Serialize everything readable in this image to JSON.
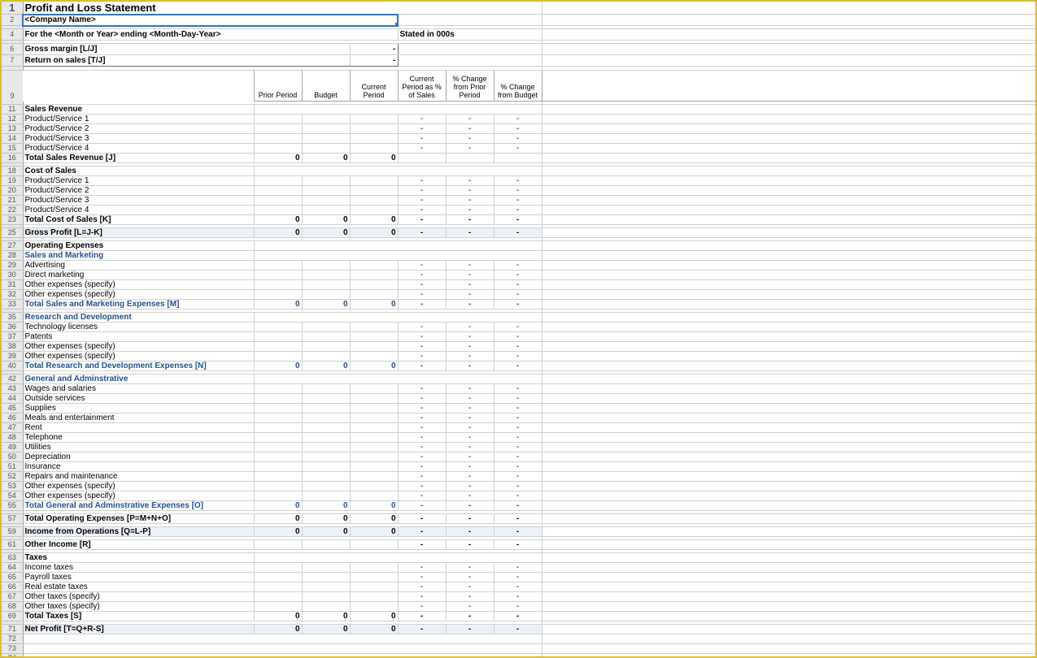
{
  "title": "Profit and Loss Statement",
  "company": "<Company Name>",
  "period_line": "For the <Month or Year> ending <Month-Day-Year>",
  "stated_in": "Stated in 000s",
  "metric_gm": "Gross margin  [L/J]",
  "metric_ros": "Return on sales  [T/J]",
  "dash": "-",
  "zero": "0",
  "col_headers": [
    "Prior Period",
    "Budget",
    "Current Period",
    "Current Period as % of Sales",
    "% Change from Prior Period",
    "% Change from Budget"
  ],
  "rows": [
    {
      "n": 11,
      "type": "label_bold",
      "a": "Sales Revenue"
    },
    {
      "n": 12,
      "type": "data",
      "a": "Product/Service 1",
      "v": [
        "",
        "",
        "",
        "- ",
        "- ",
        "- "
      ]
    },
    {
      "n": 13,
      "type": "data",
      "a": "Product/Service 2",
      "v": [
        "",
        "",
        "",
        "- ",
        "- ",
        "- "
      ]
    },
    {
      "n": 14,
      "type": "data",
      "a": "Product/Service 3",
      "v": [
        "",
        "",
        "",
        "- ",
        "- ",
        "- "
      ]
    },
    {
      "n": 15,
      "type": "data",
      "a": "Product/Service 4",
      "v": [
        "",
        "",
        "",
        "- ",
        "- ",
        "- "
      ]
    },
    {
      "n": 16,
      "type": "total",
      "a": "Total Sales Revenue  [J]",
      "v": [
        "0",
        "0",
        "0",
        "",
        "",
        ""
      ]
    },
    {
      "n": 18,
      "type": "label_bold",
      "a": "Cost of Sales"
    },
    {
      "n": 19,
      "type": "data",
      "a": "Product/Service 1",
      "v": [
        "",
        "",
        "",
        "- ",
        "- ",
        "- "
      ]
    },
    {
      "n": 20,
      "type": "data",
      "a": "Product/Service 2",
      "v": [
        "",
        "",
        "",
        "- ",
        "- ",
        "- "
      ]
    },
    {
      "n": 21,
      "type": "data",
      "a": "Product/Service 3",
      "v": [
        "",
        "",
        "",
        "- ",
        "- ",
        "- "
      ]
    },
    {
      "n": 22,
      "type": "data",
      "a": "Product/Service 4",
      "v": [
        "",
        "",
        "",
        "- ",
        "- ",
        "- "
      ]
    },
    {
      "n": 23,
      "type": "total",
      "a": "Total Cost of Sales  [K]",
      "v": [
        "0",
        "0",
        "0",
        "- ",
        "- ",
        "- "
      ]
    },
    {
      "n": 25,
      "type": "total_fill",
      "a": "Gross Profit  [L=J-K]",
      "v": [
        "0",
        "0",
        "0",
        "- ",
        "- ",
        "- "
      ]
    },
    {
      "n": 27,
      "type": "label_bold",
      "a": "Operating Expenses"
    },
    {
      "n": 28,
      "type": "label_blue",
      "a": "Sales and Marketing"
    },
    {
      "n": 29,
      "type": "data",
      "a": "Advertising",
      "v": [
        "",
        "",
        "",
        "- ",
        "- ",
        "- "
      ]
    },
    {
      "n": 30,
      "type": "data",
      "a": "Direct marketing",
      "v": [
        "",
        "",
        "",
        "- ",
        "- ",
        "- "
      ]
    },
    {
      "n": 31,
      "type": "data",
      "a": "Other expenses (specify)",
      "v": [
        "",
        "",
        "",
        "- ",
        "- ",
        "- "
      ]
    },
    {
      "n": 32,
      "type": "data",
      "a": "Other expenses (specify)",
      "v": [
        "",
        "",
        "",
        "- ",
        "- ",
        "- "
      ]
    },
    {
      "n": 33,
      "type": "total_blue",
      "a": "Total Sales and Marketing Expenses  [M]",
      "v": [
        "0",
        "0",
        "0",
        "- ",
        "- ",
        "- "
      ]
    },
    {
      "n": 35,
      "type": "label_blue",
      "a": "Research and Development"
    },
    {
      "n": 36,
      "type": "data",
      "a": "Technology licenses",
      "v": [
        "",
        "",
        "",
        "- ",
        "- ",
        "- "
      ]
    },
    {
      "n": 37,
      "type": "data",
      "a": "Patents",
      "v": [
        "",
        "",
        "",
        "- ",
        "- ",
        "- "
      ]
    },
    {
      "n": 38,
      "type": "data",
      "a": "Other expenses (specify)",
      "v": [
        "",
        "",
        "",
        "- ",
        "- ",
        "- "
      ]
    },
    {
      "n": 39,
      "type": "data",
      "a": "Other expenses (specify)",
      "v": [
        "",
        "",
        "",
        "- ",
        "- ",
        "- "
      ]
    },
    {
      "n": 40,
      "type": "total_blue",
      "a": "Total Research and Development Expenses  [N]",
      "v": [
        "0",
        "0",
        "0",
        "- ",
        "- ",
        "- "
      ]
    },
    {
      "n": 42,
      "type": "label_blue",
      "a": "General and Adminstrative"
    },
    {
      "n": 43,
      "type": "data",
      "a": "Wages and salaries",
      "v": [
        "",
        "",
        "",
        "- ",
        "- ",
        "- "
      ]
    },
    {
      "n": 44,
      "type": "data",
      "a": "Outside services",
      "v": [
        "",
        "",
        "",
        "- ",
        "- ",
        "- "
      ]
    },
    {
      "n": 45,
      "type": "data",
      "a": "Supplies",
      "v": [
        "",
        "",
        "",
        "- ",
        "- ",
        "- "
      ]
    },
    {
      "n": 46,
      "type": "data",
      "a": "Meals and entertainment",
      "v": [
        "",
        "",
        "",
        "- ",
        "- ",
        "- "
      ]
    },
    {
      "n": 47,
      "type": "data",
      "a": "Rent",
      "v": [
        "",
        "",
        "",
        "- ",
        "- ",
        "- "
      ]
    },
    {
      "n": 48,
      "type": "data",
      "a": "Telephone",
      "v": [
        "",
        "",
        "",
        "- ",
        "- ",
        "- "
      ]
    },
    {
      "n": 49,
      "type": "data",
      "a": "Utilities",
      "v": [
        "",
        "",
        "",
        "- ",
        "- ",
        "- "
      ]
    },
    {
      "n": 50,
      "type": "data",
      "a": "Depreciation",
      "v": [
        "",
        "",
        "",
        "- ",
        "- ",
        "- "
      ]
    },
    {
      "n": 51,
      "type": "data",
      "a": "Insurance",
      "v": [
        "",
        "",
        "",
        "- ",
        "- ",
        "- "
      ]
    },
    {
      "n": 52,
      "type": "data",
      "a": "Repairs and maintenance",
      "v": [
        "",
        "",
        "",
        "- ",
        "- ",
        "- "
      ]
    },
    {
      "n": 53,
      "type": "data",
      "a": "Other expenses (specify)",
      "v": [
        "",
        "",
        "",
        "- ",
        "- ",
        "- "
      ]
    },
    {
      "n": 54,
      "type": "data",
      "a": "Other expenses (specify)",
      "v": [
        "",
        "",
        "",
        "- ",
        "- ",
        "- "
      ]
    },
    {
      "n": 55,
      "type": "total_blue",
      "a": "Total General and Adminstrative Expenses  [O]",
      "v": [
        "0",
        "0",
        "0",
        "- ",
        "- ",
        "- "
      ]
    },
    {
      "n": 57,
      "type": "total",
      "a": "Total Operating Expenses  [P=M+N+O]",
      "v": [
        "0",
        "0",
        "0",
        "- ",
        "- ",
        "- "
      ]
    },
    {
      "n": 59,
      "type": "total_fill",
      "a": "Income from Operations  [Q=L-P]",
      "v": [
        "0",
        "0",
        "0",
        "- ",
        "- ",
        "- "
      ]
    },
    {
      "n": 61,
      "type": "total",
      "a": "Other Income  [R]",
      "v": [
        "",
        "",
        "",
        "- ",
        "- ",
        "- "
      ]
    },
    {
      "n": 63,
      "type": "label_bold",
      "a": "Taxes"
    },
    {
      "n": 64,
      "type": "data",
      "a": "Income taxes",
      "v": [
        "",
        "",
        "",
        "- ",
        "- ",
        "- "
      ]
    },
    {
      "n": 65,
      "type": "data",
      "a": "Payroll taxes",
      "v": [
        "",
        "",
        "",
        "- ",
        "- ",
        "- "
      ]
    },
    {
      "n": 66,
      "type": "data",
      "a": "Real estate taxes",
      "v": [
        "",
        "",
        "",
        "- ",
        "- ",
        "- "
      ]
    },
    {
      "n": 67,
      "type": "data",
      "a": "Other taxes (specify)",
      "v": [
        "",
        "",
        "",
        "- ",
        "- ",
        "- "
      ]
    },
    {
      "n": 68,
      "type": "data",
      "a": "Other taxes (specify)",
      "v": [
        "",
        "",
        "",
        "- ",
        "- ",
        "- "
      ]
    },
    {
      "n": 69,
      "type": "total",
      "a": "Total Taxes  [S]",
      "v": [
        "0",
        "0",
        "0",
        "- ",
        "- ",
        "- "
      ]
    },
    {
      "n": 71,
      "type": "total_fill",
      "a": "Net Profit  [T=Q+R-S]",
      "v": [
        "0",
        "0",
        "0",
        "- ",
        "- ",
        "- "
      ]
    }
  ],
  "tiny_rows": [
    3,
    5,
    8,
    10,
    17,
    24,
    26,
    34,
    41,
    56,
    58,
    60,
    62,
    70
  ],
  "trailing": [
    72,
    73,
    74
  ]
}
